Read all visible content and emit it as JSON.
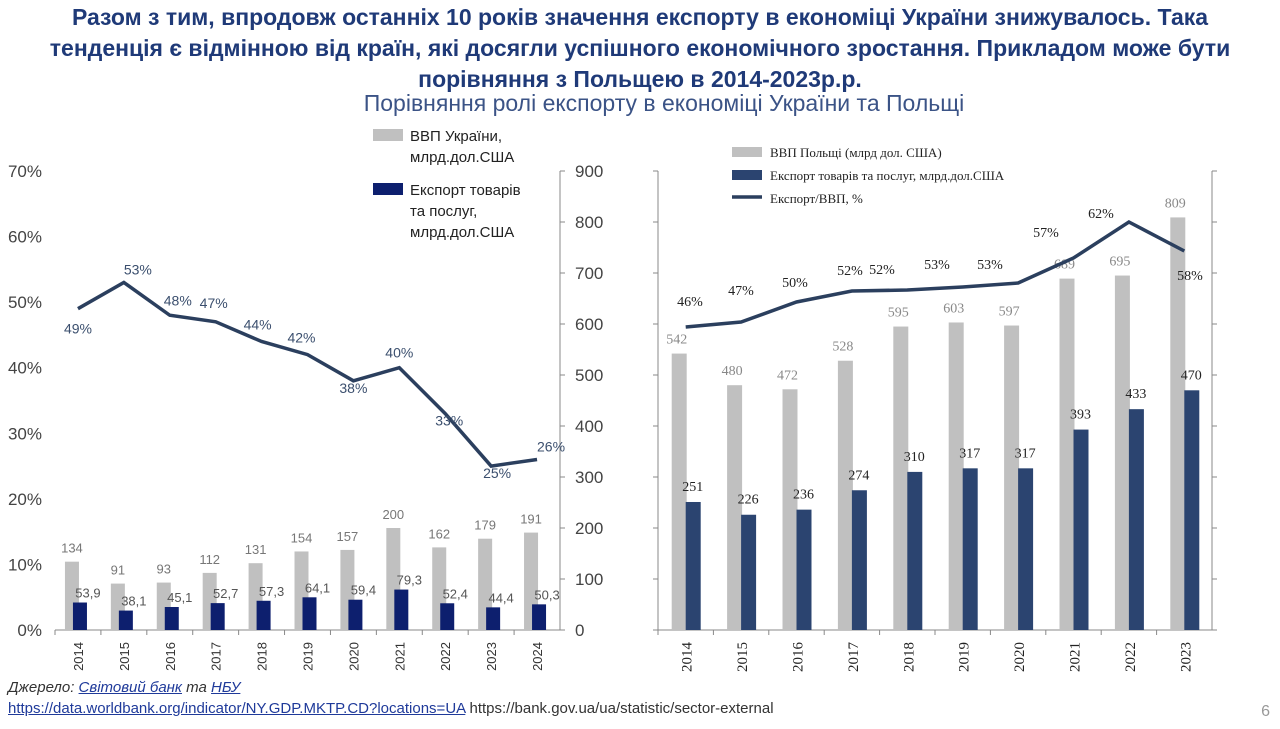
{
  "slide": {
    "headline": "Разом з тим, впродовж останніх 10 років значення експорту в економіці України знижувалось. Така тенденція є відмінною від країн, які досягли успішного економічного зростання. Прикладом може бути порівняння з Польщею в 2014-2023р.р.",
    "subtitle": "Порівняння ролі експорту в економіці України та Польщі",
    "source_prefix": "Джерело: ",
    "source_link1": "Світовий банк",
    "source_and": " та ",
    "source_link2": "НБУ",
    "url1": "https://data.worldbank.org/indicator/NY.GDP.MKTP.CD?locations=UA",
    "url2": " https://bank.gov.ua/ua/statistic/sector-external",
    "page_number": "6"
  },
  "colors": {
    "gdp_bar": "#c0c0c0",
    "ua_export": "#0d1f6e",
    "pl_export": "#2b4470",
    "line": "#2b3f5e"
  },
  "chart_data": [
    {
      "type": "bar+line",
      "country": "Ukraine",
      "categories": [
        "2014",
        "2015",
        "2016",
        "2017",
        "2018",
        "2019",
        "2020",
        "2021",
        "2022",
        "2023",
        "2024"
      ],
      "series": [
        {
          "name": "ВВП України, млрд.дол.США",
          "axis": "right",
          "values": [
            134,
            91,
            93,
            112,
            131,
            154,
            157,
            200,
            162,
            179,
            191
          ],
          "labels": [
            "134",
            "91",
            "93",
            "112",
            "131",
            "154",
            "157",
            "200",
            "162",
            "179",
            "191"
          ]
        },
        {
          "name": "Експорт товарів та послуг, млрд.дол.США",
          "axis": "right",
          "values": [
            53.9,
            38.1,
            45.1,
            52.7,
            57.3,
            64.1,
            59.4,
            79.3,
            52.4,
            44.4,
            50.3
          ],
          "labels": [
            "53,9",
            "38,1",
            "45,1",
            "52,7",
            "57,3",
            "64,1",
            "59,4",
            "79,3",
            "52,4",
            "44,4",
            "50,3"
          ]
        },
        {
          "name": "Експорт/ВВП",
          "axis": "left",
          "values": [
            49,
            53,
            48,
            47,
            44,
            42,
            38,
            40,
            33,
            25,
            26
          ],
          "labels": [
            "49%",
            "53%",
            "48%",
            "47%",
            "44%",
            "42%",
            "38%",
            "40%",
            "33%",
            "25%",
            "26%"
          ]
        }
      ],
      "legend": [
        "ВВП України,",
        "млрд.дол.США",
        "Експорт товарів",
        "та послуг,",
        "млрд.дол.США"
      ],
      "left_axis": {
        "ylim": [
          0,
          70
        ],
        "ticks": [
          "0%",
          "10%",
          "20%",
          "30%",
          "40%",
          "50%",
          "60%",
          "70%"
        ]
      },
      "right_axis": {
        "ylim": [
          0,
          900
        ],
        "ticks": [
          "0",
          "100",
          "200",
          "300",
          "400",
          "500",
          "600",
          "700",
          "800",
          "900"
        ]
      }
    },
    {
      "type": "bar+line",
      "country": "Poland",
      "categories": [
        "2014",
        "2015",
        "2016",
        "2017",
        "2018",
        "2019",
        "2020",
        "2021",
        "2022",
        "2023"
      ],
      "series": [
        {
          "name": "ВВП Польщі (млрд дол. США)",
          "values": [
            542,
            480,
            472,
            528,
            595,
            603,
            597,
            689,
            695,
            809
          ],
          "labels": [
            "542",
            "480",
            "472",
            "528",
            "595",
            "603",
            "597",
            "689",
            "695",
            "809"
          ]
        },
        {
          "name": "Експорт товарів та послуг, млрд.дол.США",
          "values": [
            251,
            226,
            236,
            274,
            310,
            317,
            317,
            393,
            433,
            470
          ],
          "labels": [
            "251",
            "226",
            "236",
            "274",
            "310",
            "317",
            "317",
            "393",
            "433",
            "470"
          ]
        },
        {
          "name": "Експорт/ВВП, %",
          "values": [
            46,
            47,
            50,
            52,
            52,
            53,
            53,
            57,
            62,
            58
          ],
          "labels": [
            "46%",
            "47%",
            "50%",
            "52%",
            "52%",
            "53%",
            "53%",
            "57%",
            "62%",
            "58%"
          ]
        }
      ],
      "legend": [
        "ВВП Польщі (млрд дол. США)",
        "Експорт товарів та послуг, млрд.дол.США",
        "Експорт/ВВП, %"
      ],
      "ylim": [
        0,
        900
      ]
    }
  ]
}
